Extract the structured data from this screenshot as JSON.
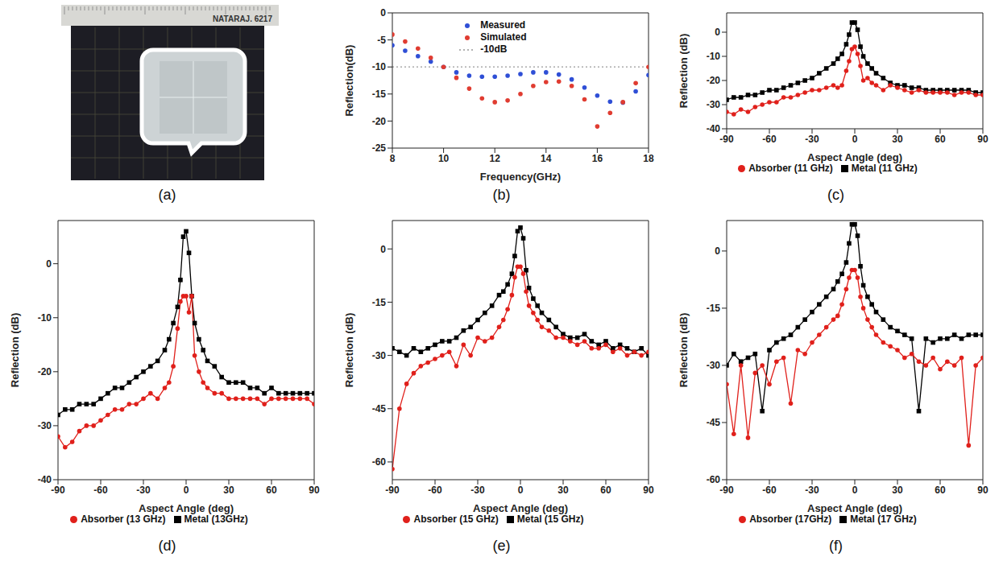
{
  "photo": {
    "panel_label": "(a)",
    "ruler_text": "NATARAJ. 6217"
  },
  "chart_data": [
    {
      "panel_label": "(b)",
      "type": "scatter",
      "x_label": "Frequency(GHz)",
      "y_label": "Reflection(dB)",
      "x": [
        8,
        8.5,
        9,
        9.5,
        10,
        10.5,
        11,
        11.5,
        12,
        12.5,
        13,
        13.5,
        14,
        14.5,
        15,
        15.5,
        16,
        16.5,
        17,
        17.5,
        18
      ],
      "xlim": [
        8,
        18
      ],
      "xticks": [
        8,
        10,
        12,
        14,
        16,
        18
      ],
      "ylim": [
        -25,
        0
      ],
      "yticks": [
        -25,
        -20,
        -15,
        -10,
        -5,
        0
      ],
      "grid": false,
      "legend": "upper center",
      "series": [
        {
          "name": "Measured",
          "type": "scatter",
          "color": "#2f4fd6",
          "marker": "circle",
          "line_style": "none",
          "values": [
            -6,
            -7,
            -8,
            -9,
            -10,
            -11,
            -11.6,
            -11.8,
            -11.8,
            -11.6,
            -11.3,
            -11,
            -11,
            -11.4,
            -12.3,
            -13.8,
            -15.3,
            -16.4,
            -16.6,
            -14.5,
            -11.5
          ]
        },
        {
          "name": "Simulated",
          "type": "scatter",
          "color": "#e03c31",
          "marker": "circle",
          "line_style": "none",
          "values": [
            -4,
            -5.3,
            -6.6,
            -8.3,
            -10,
            -12,
            -14,
            -15.8,
            -16.5,
            -16.2,
            -15,
            -13.5,
            -12.8,
            -12.7,
            -13.5,
            -16,
            -21,
            -18.5,
            -16.5,
            -13,
            -10
          ]
        },
        {
          "name": "-10dB",
          "type": "line",
          "color": "#999999",
          "marker": "none",
          "line_style": "dotted",
          "values": [
            -10,
            -10,
            -10,
            -10,
            -10,
            -10,
            -10,
            -10,
            -10,
            -10,
            -10,
            -10,
            -10,
            -10,
            -10,
            -10,
            -10,
            -10,
            -10,
            -10,
            -10
          ]
        }
      ]
    },
    {
      "panel_label": "(c)",
      "type": "line",
      "x_label": "Aspect Angle (deg)",
      "y_label": "Reflection (dB)",
      "x": [
        -90,
        -85,
        -80,
        -75,
        -70,
        -65,
        -60,
        -55,
        -50,
        -45,
        -40,
        -35,
        -30,
        -25,
        -20,
        -15,
        -12,
        -9,
        -6,
        -4,
        -2,
        0,
        2,
        4,
        6,
        9,
        12,
        15,
        20,
        25,
        30,
        35,
        40,
        45,
        50,
        55,
        60,
        65,
        70,
        75,
        80,
        85,
        90
      ],
      "xlim": [
        -90,
        90
      ],
      "xticks": [
        -90,
        -60,
        -30,
        0,
        30,
        60,
        90
      ],
      "ylim": [
        -40,
        8
      ],
      "yticks": [
        -40,
        -30,
        -20,
        -10,
        0
      ],
      "grid": false,
      "legend": "bottom",
      "series": [
        {
          "name": "Metal (11 GHz)",
          "color": "#000000",
          "marker": "square",
          "line_style": "solid",
          "values": [
            -28,
            -27,
            -27,
            -26,
            -26,
            -25,
            -24,
            -24,
            -23,
            -22,
            -21,
            -20,
            -19,
            -17,
            -15,
            -13,
            -11,
            -9,
            -5,
            -1,
            4,
            4,
            1,
            -6,
            -10,
            -13,
            -15,
            -17,
            -19,
            -21,
            -22,
            -22,
            -23,
            -23,
            -24,
            -24,
            -24,
            -24,
            -24,
            -24,
            -24,
            -25,
            -25
          ]
        },
        {
          "name": "Absorber (11 GHz)",
          "color": "#e0201b",
          "marker": "circle",
          "line_style": "solid",
          "values": [
            -33,
            -34,
            -32,
            -33,
            -31,
            -30,
            -29,
            -29,
            -27,
            -27,
            -26,
            -25,
            -24,
            -24,
            -23,
            -22,
            -23,
            -22,
            -16,
            -12,
            -7,
            -6,
            -9,
            -14,
            -20,
            -19,
            -21,
            -22,
            -24,
            -22,
            -23,
            -24,
            -25,
            -24,
            -25,
            -25,
            -25,
            -25,
            -26,
            -25,
            -25,
            -26,
            -26
          ]
        }
      ]
    },
    {
      "panel_label": "(d)",
      "type": "line",
      "x_label": "Aspect Angle (deg)",
      "y_label": "Reflection (dB)",
      "x": [
        -90,
        -85,
        -80,
        -75,
        -70,
        -65,
        -60,
        -55,
        -50,
        -45,
        -40,
        -35,
        -30,
        -25,
        -20,
        -15,
        -12,
        -9,
        -6,
        -4,
        -2,
        0,
        2,
        4,
        6,
        9,
        12,
        15,
        20,
        25,
        30,
        35,
        40,
        45,
        50,
        55,
        60,
        65,
        70,
        75,
        80,
        85,
        90
      ],
      "xlim": [
        -90,
        90
      ],
      "xticks": [
        -90,
        -60,
        -30,
        0,
        30,
        60,
        90
      ],
      "ylim": [
        -40,
        8
      ],
      "yticks": [
        -40,
        -30,
        -20,
        -10,
        0
      ],
      "grid": false,
      "legend": "bottom",
      "series": [
        {
          "name": "Metal (13GHz)",
          "color": "#000000",
          "marker": "square",
          "line_style": "solid",
          "values": [
            -28,
            -27,
            -27,
            -26,
            -26,
            -26,
            -25,
            -24,
            -23,
            -23,
            -22,
            -21,
            -20,
            -19,
            -18,
            -16,
            -14,
            -11,
            -8,
            -3,
            5,
            6,
            2,
            -6,
            -11,
            -14,
            -16,
            -18,
            -19,
            -21,
            -22,
            -22,
            -22,
            -23,
            -23,
            -24,
            -23,
            -24,
            -24,
            -24,
            -24,
            -24,
            -24
          ]
        },
        {
          "name": "Absorber (13 GHz)",
          "color": "#e0201b",
          "marker": "circle",
          "line_style": "solid",
          "values": [
            -32,
            -34,
            -33,
            -31,
            -30,
            -30,
            -29,
            -28,
            -27,
            -27,
            -26,
            -26,
            -25,
            -24,
            -25,
            -23,
            -22,
            -19,
            -12,
            -7,
            -6,
            -6,
            -9,
            -6,
            -17,
            -20,
            -22,
            -23,
            -24,
            -24,
            -25,
            -25,
            -25,
            -25,
            -25,
            -26,
            -25,
            -25,
            -25,
            -25,
            -25,
            -25,
            -26
          ]
        }
      ]
    },
    {
      "panel_label": "(e)",
      "type": "line",
      "x_label": "Aspect Angle (deg)",
      "y_label": "Reflection (dB)",
      "x": [
        -90,
        -85,
        -80,
        -75,
        -70,
        -65,
        -60,
        -55,
        -50,
        -45,
        -40,
        -35,
        -30,
        -25,
        -20,
        -15,
        -12,
        -9,
        -6,
        -4,
        -2,
        0,
        2,
        4,
        6,
        9,
        12,
        15,
        20,
        25,
        30,
        35,
        40,
        45,
        50,
        55,
        60,
        65,
        70,
        75,
        80,
        85,
        90
      ],
      "xlim": [
        -90,
        90
      ],
      "xticks": [
        -90,
        -60,
        -30,
        0,
        30,
        60,
        90
      ],
      "ylim": [
        -65,
        8
      ],
      "yticks": [
        -60,
        -45,
        -30,
        -15,
        0
      ],
      "grid": false,
      "legend": "bottom",
      "series": [
        {
          "name": "Metal (15 GHz)",
          "color": "#000000",
          "marker": "square",
          "line_style": "solid",
          "values": [
            -28,
            -29,
            -30,
            -28,
            -29,
            -28,
            -27,
            -26,
            -26,
            -25,
            -23,
            -22,
            -20,
            -18,
            -16,
            -13,
            -12,
            -10,
            -7,
            -2,
            5,
            6,
            3,
            -6,
            -11,
            -14,
            -16,
            -18,
            -20,
            -22,
            -24,
            -25,
            -25,
            -24,
            -26,
            -27,
            -26,
            -28,
            -27,
            -28,
            -29,
            -28,
            -30
          ]
        },
        {
          "name": "Absorber (15 GHz)",
          "color": "#e0201b",
          "marker": "circle",
          "line_style": "solid",
          "values": [
            -62,
            -45,
            -38,
            -35,
            -33,
            -32,
            -31,
            -30,
            -29,
            -33,
            -27,
            -30,
            -25,
            -26,
            -25,
            -22,
            -20,
            -17,
            -13,
            -8,
            -5,
            -5,
            -7,
            -12,
            -16,
            -18,
            -20,
            -22,
            -23,
            -25,
            -25,
            -26,
            -27,
            -26,
            -28,
            -28,
            -27,
            -29,
            -28,
            -30,
            -29,
            -30,
            -29
          ]
        }
      ]
    },
    {
      "panel_label": "(f)",
      "type": "line",
      "x_label": "Aspect Angle (deg)",
      "y_label": "Reflection (dB)",
      "x": [
        -90,
        -85,
        -80,
        -75,
        -70,
        -65,
        -60,
        -55,
        -50,
        -45,
        -40,
        -35,
        -30,
        -25,
        -20,
        -15,
        -12,
        -9,
        -6,
        -4,
        -2,
        0,
        2,
        4,
        6,
        9,
        12,
        15,
        20,
        25,
        30,
        35,
        40,
        45,
        50,
        55,
        60,
        65,
        70,
        75,
        80,
        85,
        90
      ],
      "xlim": [
        -90,
        90
      ],
      "xticks": [
        -90,
        -60,
        -30,
        0,
        30,
        60,
        90
      ],
      "ylim": [
        -60,
        8
      ],
      "yticks": [
        -60,
        -45,
        -30,
        -15,
        0
      ],
      "grid": false,
      "legend": "bottom",
      "series": [
        {
          "name": "Metal (17 GHz)",
          "color": "#000000",
          "marker": "square",
          "line_style": "solid",
          "values": [
            -30,
            -27,
            -29,
            -28,
            -27,
            -42,
            -26,
            -24,
            -23,
            -22,
            -20,
            -18,
            -16,
            -14,
            -12,
            -10,
            -8,
            -6,
            -3,
            2,
            7,
            7,
            4,
            -4,
            -9,
            -12,
            -14,
            -16,
            -18,
            -20,
            -21,
            -22,
            -23,
            -42,
            -23,
            -24,
            -23,
            -23,
            -22,
            -23,
            -22,
            -22,
            -22
          ]
        },
        {
          "name": "Absorber (17GHz)",
          "color": "#e0201b",
          "marker": "circle",
          "line_style": "solid",
          "values": [
            -35,
            -48,
            -30,
            -49,
            -32,
            -30,
            -35,
            -29,
            -28,
            -40,
            -26,
            -27,
            -24,
            -22,
            -20,
            -18,
            -17,
            -14,
            -10,
            -7,
            -5,
            -5,
            -7,
            -12,
            -15,
            -18,
            -20,
            -22,
            -24,
            -25,
            -26,
            -28,
            -27,
            -29,
            -30,
            -28,
            -31,
            -29,
            -30,
            -28,
            -51,
            -30,
            -28
          ]
        }
      ]
    }
  ]
}
